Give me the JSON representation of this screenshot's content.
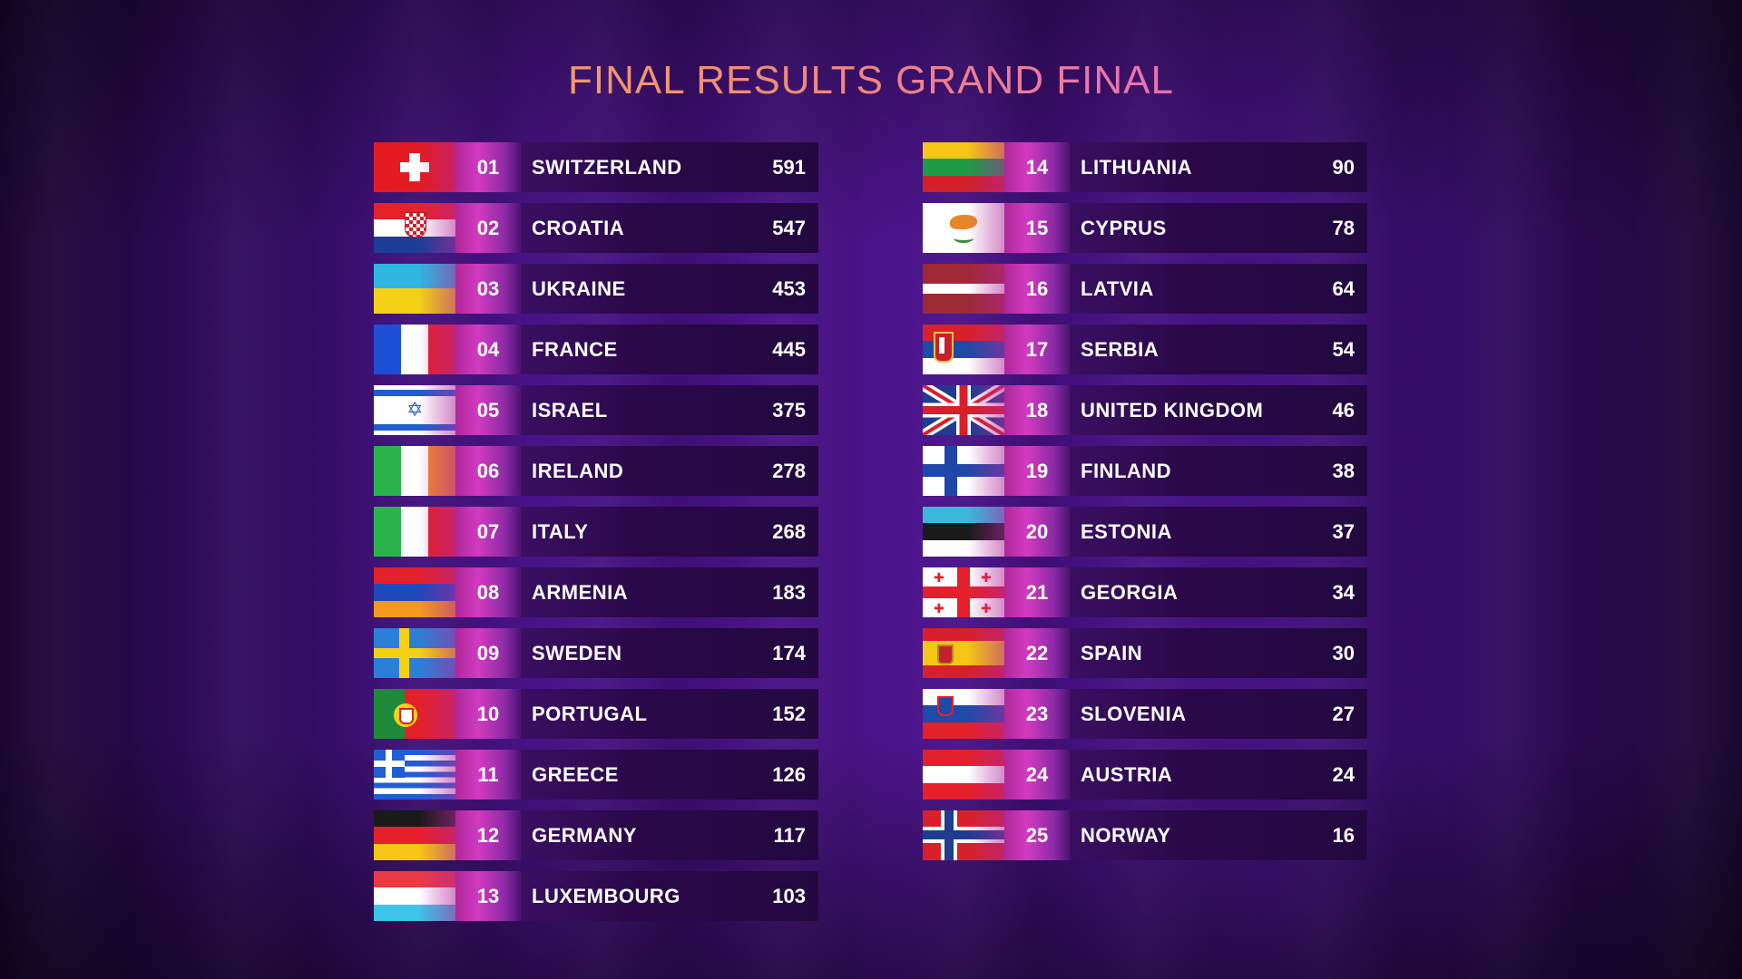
{
  "title": "FINAL RESULTS GRAND FINAL",
  "left": [
    {
      "rank": "01",
      "country": "SWITZERLAND",
      "points": "591",
      "flag": "switzerland-flag"
    },
    {
      "rank": "02",
      "country": "CROATIA",
      "points": "547",
      "flag": "croatia-flag"
    },
    {
      "rank": "03",
      "country": "UKRAINE",
      "points": "453",
      "flag": "ukraine-flag"
    },
    {
      "rank": "04",
      "country": "FRANCE",
      "points": "445",
      "flag": "france-flag"
    },
    {
      "rank": "05",
      "country": "ISRAEL",
      "points": "375",
      "flag": "israel-flag"
    },
    {
      "rank": "06",
      "country": "IRELAND",
      "points": "278",
      "flag": "ireland-flag"
    },
    {
      "rank": "07",
      "country": "ITALY",
      "points": "268",
      "flag": "italy-flag"
    },
    {
      "rank": "08",
      "country": "ARMENIA",
      "points": "183",
      "flag": "armenia-flag"
    },
    {
      "rank": "09",
      "country": "SWEDEN",
      "points": "174",
      "flag": "sweden-flag"
    },
    {
      "rank": "10",
      "country": "PORTUGAL",
      "points": "152",
      "flag": "portugal-flag"
    },
    {
      "rank": "11",
      "country": "GREECE",
      "points": "126",
      "flag": "greece-flag"
    },
    {
      "rank": "12",
      "country": "GERMANY",
      "points": "117",
      "flag": "germany-flag"
    },
    {
      "rank": "13",
      "country": "LUXEMBOURG",
      "points": "103",
      "flag": "luxembourg-flag"
    }
  ],
  "right": [
    {
      "rank": "14",
      "country": "LITHUANIA",
      "points": "90",
      "flag": "lithuania-flag"
    },
    {
      "rank": "15",
      "country": "CYPRUS",
      "points": "78",
      "flag": "cyprus-flag"
    },
    {
      "rank": "16",
      "country": "LATVIA",
      "points": "64",
      "flag": "latvia-flag"
    },
    {
      "rank": "17",
      "country": "SERBIA",
      "points": "54",
      "flag": "serbia-flag"
    },
    {
      "rank": "18",
      "country": "UNITED KINGDOM",
      "points": "46",
      "flag": "united-kingdom-flag"
    },
    {
      "rank": "19",
      "country": "FINLAND",
      "points": "38",
      "flag": "finland-flag"
    },
    {
      "rank": "20",
      "country": "ESTONIA",
      "points": "37",
      "flag": "estonia-flag"
    },
    {
      "rank": "21",
      "country": "GEORGIA",
      "points": "34",
      "flag": "georgia-flag"
    },
    {
      "rank": "22",
      "country": "SPAIN",
      "points": "30",
      "flag": "spain-flag"
    },
    {
      "rank": "23",
      "country": "SLOVENIA",
      "points": "27",
      "flag": "slovenia-flag"
    },
    {
      "rank": "24",
      "country": "AUSTRIA",
      "points": "24",
      "flag": "austria-flag"
    },
    {
      "rank": "25",
      "country": "NORWAY",
      "points": "16",
      "flag": "norway-flag"
    }
  ]
}
